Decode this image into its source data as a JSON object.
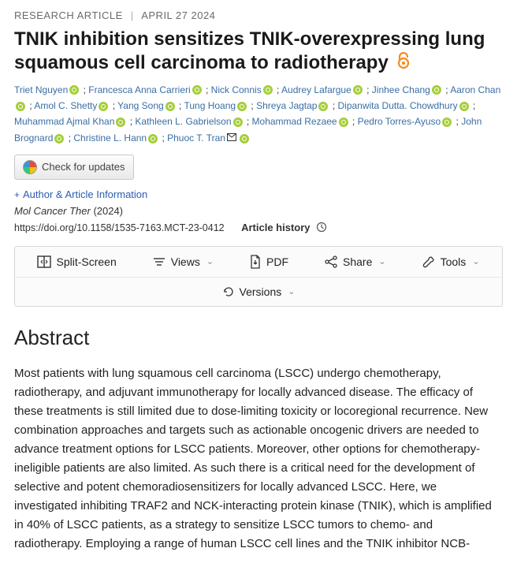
{
  "meta": {
    "article_type": "RESEARCH ARTICLE",
    "date": "APRIL 27 2024"
  },
  "title": "TNIK inhibition sensitizes TNIK-overexpressing lung squamous cell carcinoma to radiotherapy",
  "authors": [
    {
      "name": "Triet Nguyen",
      "orcid": true
    },
    {
      "name": "Francesca Anna Carrieri",
      "orcid": true
    },
    {
      "name": "Nick Connis",
      "orcid": true
    },
    {
      "name": "Audrey Lafargue",
      "orcid": true
    },
    {
      "name": "Jinhee Chang",
      "orcid": true
    },
    {
      "name": "Aaron Chan",
      "orcid": true
    },
    {
      "name": "Amol C. Shetty",
      "orcid": true
    },
    {
      "name": "Yang Song",
      "orcid": true
    },
    {
      "name": "Tung Hoang",
      "orcid": true
    },
    {
      "name": "Shreya Jagtap",
      "orcid": true
    },
    {
      "name": "Dipanwita Dutta. Chowdhury",
      "orcid": true
    },
    {
      "name": "Muhammad Ajmal Khan",
      "orcid": true
    },
    {
      "name": "Kathleen L. Gabrielson",
      "orcid": true
    },
    {
      "name": "Mohammad Rezaee",
      "orcid": true
    },
    {
      "name": "Pedro Torres-Ayuso",
      "orcid": true
    },
    {
      "name": "John Brognard",
      "orcid": true
    },
    {
      "name": "Christine L. Hann",
      "orcid": true
    },
    {
      "name": "Phuoc T. Tran",
      "orcid": true,
      "corresponding": true
    }
  ],
  "check_updates_label": "Check for updates",
  "collapse_label": "Author & Article Information",
  "journal": "Mol Cancer Ther",
  "year": "(2024)",
  "doi": "https://doi.org/10.1158/1535-7163.MCT-23-0412",
  "article_history_label": "Article history",
  "toolbar": {
    "split_screen": "Split-Screen",
    "views": "Views",
    "pdf": "PDF",
    "share": "Share",
    "tools": "Tools",
    "versions": "Versions"
  },
  "abstract_heading": "Abstract",
  "abstract_body": "Most patients with lung squamous cell carcinoma (LSCC) undergo chemotherapy, radiotherapy, and adjuvant immunotherapy for locally advanced disease. The efficacy of these treatments is still limited due to dose-limiting toxicity or locoregional recurrence. New combination approaches and targets such as actionable oncogenic drivers are needed to advance treatment options for LSCC patients. Moreover, other options for chemotherapy-ineligible patients are also limited. As such there is a critical need for the development of selective and potent chemoradiosensitizers for locally advanced LSCC. Here, we investigated inhibiting TRAF2 and NCK-interacting protein kinase (TNIK), which is amplified in 40% of LSCC patients, as a strategy to sensitize LSCC tumors to chemo- and radiotherapy. Employing a range of human LSCC cell lines and the TNIK inhibitor NCB-",
  "colors": {
    "link": "#2a5db0",
    "author_link": "#3a6ea5",
    "meta_gray": "#6b6b6b",
    "orcid_green": "#a6ce39",
    "oa_orange": "#f68b1f",
    "border": "#d8d8d8"
  }
}
